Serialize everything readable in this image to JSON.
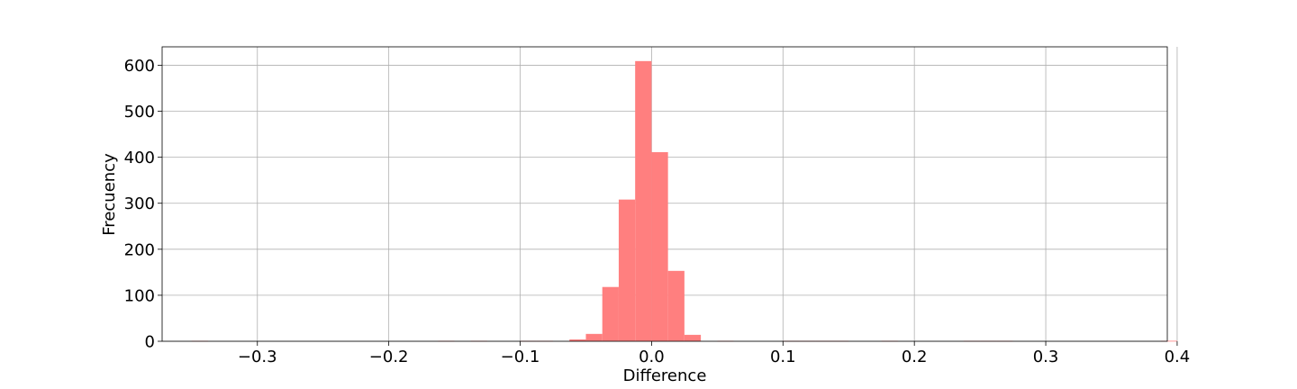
{
  "chart_data": {
    "type": "bar",
    "title": "",
    "xlabel": "Difference",
    "ylabel": "Frecuency",
    "xlim": [
      -0.3725,
      0.3925
    ],
    "ylim": [
      0,
      640
    ],
    "grid": true,
    "bar_color": "#ff7f7f",
    "x_ticks": [
      -0.3,
      -0.2,
      -0.1,
      0.0,
      0.1,
      0.2,
      0.3,
      0.4
    ],
    "x_tick_labels": [
      "−0.3",
      "−0.2",
      "−0.1",
      "0.0",
      "0.1",
      "0.2",
      "0.3",
      "0.4"
    ],
    "y_ticks": [
      0,
      100,
      200,
      300,
      400,
      500,
      600
    ],
    "y_tick_labels": [
      "0",
      "100",
      "200",
      "300",
      "400",
      "500",
      "600"
    ],
    "bin_width": 0.0125,
    "bins": [
      {
        "x0": -0.35,
        "value": 1
      },
      {
        "x0": -0.1625,
        "value": 1
      },
      {
        "x0": -0.1375,
        "value": 1
      },
      {
        "x0": -0.1,
        "value": 1
      },
      {
        "x0": -0.0875,
        "value": 1
      },
      {
        "x0": -0.0625,
        "value": 4
      },
      {
        "x0": -0.05,
        "value": 16
      },
      {
        "x0": -0.0375,
        "value": 118
      },
      {
        "x0": -0.025,
        "value": 308
      },
      {
        "x0": -0.0125,
        "value": 609
      },
      {
        "x0": 0.0,
        "value": 411
      },
      {
        "x0": 0.0125,
        "value": 153
      },
      {
        "x0": 0.025,
        "value": 14
      },
      {
        "x0": 0.05,
        "value": 1
      },
      {
        "x0": 0.1,
        "value": 1
      },
      {
        "x0": 0.1125,
        "value": 1
      },
      {
        "x0": 0.125,
        "value": 1
      },
      {
        "x0": 0.1375,
        "value": 1
      },
      {
        "x0": 0.175,
        "value": 1
      },
      {
        "x0": 0.2375,
        "value": 1
      },
      {
        "x0": 0.25,
        "value": 1
      },
      {
        "x0": 0.2625,
        "value": 1
      },
      {
        "x0": 0.3875,
        "value": 1
      }
    ]
  }
}
